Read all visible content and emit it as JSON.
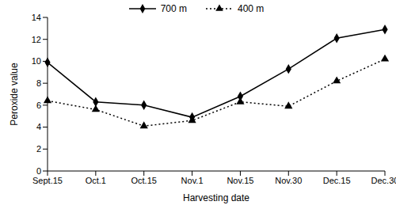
{
  "chart_data": {
    "type": "line",
    "x_label": "Harvesting date",
    "y_label": "Peroxide value",
    "categories": [
      "Sept.15",
      "Oct.1",
      "Oct.15",
      "Nov.1",
      "Nov.15",
      "Nov.30",
      "Dec.15",
      "Dec.30"
    ],
    "series": [
      {
        "name": "700 m",
        "color": "#000000",
        "marker": "diamond",
        "line_style": "solid",
        "values": [
          9.9,
          6.3,
          6.0,
          4.9,
          6.8,
          9.3,
          12.1,
          12.9
        ]
      },
      {
        "name": "400 m",
        "color": "#000000",
        "marker": "triangle",
        "line_style": "dotted",
        "values": [
          6.4,
          5.6,
          4.1,
          4.6,
          6.3,
          5.9,
          8.2,
          10.2
        ]
      }
    ],
    "ylim": [
      0,
      14
    ],
    "yticks": [
      0,
      2,
      4,
      6,
      8,
      10,
      12,
      14
    ],
    "grid": false,
    "legend": "top"
  }
}
